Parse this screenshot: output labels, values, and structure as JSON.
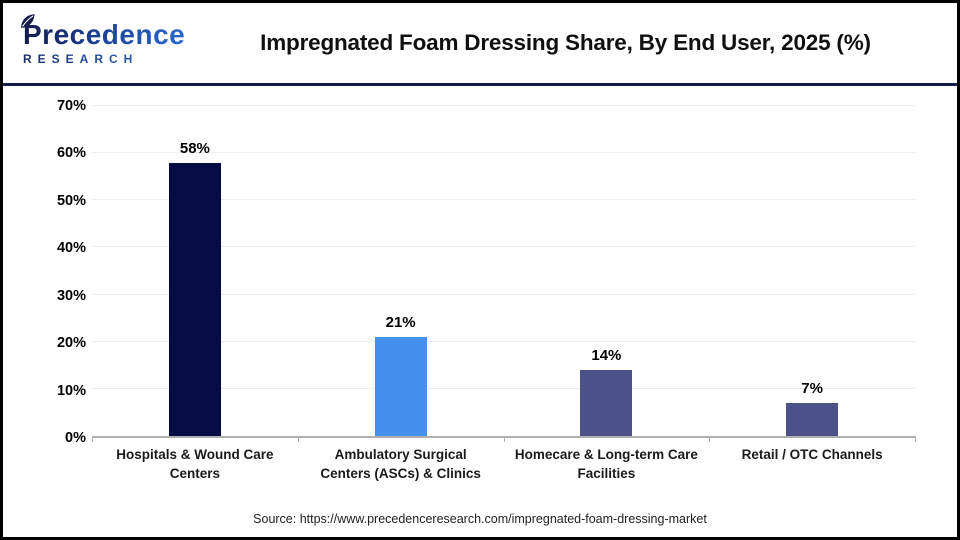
{
  "header": {
    "logo": {
      "line1": "Precedence",
      "line2": "RESEARCH",
      "leaf_color": "#141b4d"
    },
    "title": "Impregnated Foam Dressing Share, By End User, 2025 (%)"
  },
  "chart_data": {
    "type": "bar",
    "title": "Impregnated Foam Dressing Share, By End User, 2025 (%)",
    "categories": [
      "Hospitals & Wound Care Centers",
      "Ambulatory Surgical Centers (ASCs) & Clinics",
      "Homecare & Long-term Care Facilities",
      "Retail / OTC Channels"
    ],
    "values": [
      58,
      21,
      14,
      7
    ],
    "value_labels": [
      "58%",
      "21%",
      "14%",
      "7%"
    ],
    "bar_colors": [
      "#050b45",
      "#4590ed",
      "#4c5187",
      "#4c5187"
    ],
    "xlabel": "",
    "ylabel": "",
    "ylim": [
      0,
      70
    ],
    "ytick_step": 10,
    "ytick_labels": [
      "0%",
      "10%",
      "20%",
      "30%",
      "40%",
      "50%",
      "60%",
      "70%"
    ],
    "grid": true,
    "legend": false
  },
  "footer": {
    "source": "Source: https://www.precedenceresearch.com/impregnated-foam-dressing-market"
  },
  "colors": {
    "border": "#000000",
    "divider_navy": "#141b4d",
    "axis_line": "#b0b0b0",
    "gridline": "#ededed",
    "logo_navy": "#141b4d",
    "logo_blue": "#2f7be8",
    "text": "#000000"
  }
}
